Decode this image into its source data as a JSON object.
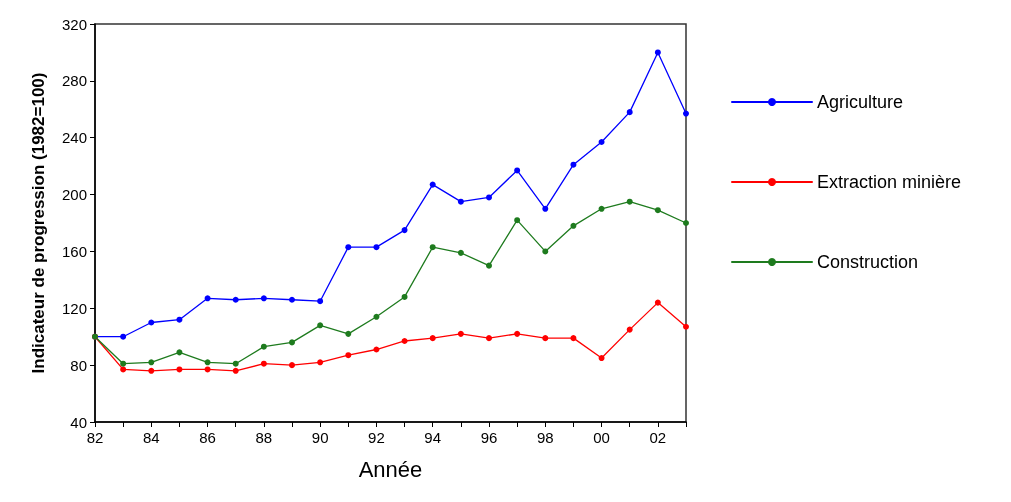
{
  "chart_data": {
    "type": "line",
    "xlabel": "Année",
    "ylabel": "Indicateur de progression (1982=100)",
    "x": [
      1982,
      1983,
      1984,
      1985,
      1986,
      1987,
      1988,
      1989,
      1990,
      1991,
      1992,
      1993,
      1994,
      1995,
      1996,
      1997,
      1998,
      1999,
      2000,
      2001,
      2002,
      2003
    ],
    "series": [
      {
        "name": "Agriculture",
        "color": "#0000ff",
        "values": [
          100,
          100,
          110,
          112,
          127,
          126,
          127,
          126,
          125,
          163,
          163,
          175,
          207,
          195,
          198,
          217,
          190,
          221,
          237,
          258,
          300,
          257
        ]
      },
      {
        "name": "Extraction minière",
        "color": "#ff0000",
        "values": [
          100,
          77,
          76,
          77,
          77,
          76,
          81,
          80,
          82,
          87,
          91,
          97,
          99,
          102,
          99,
          102,
          99,
          99,
          85,
          105,
          124,
          107
        ]
      },
      {
        "name": "Construction",
        "color": "#1e7b1e",
        "values": [
          100,
          81,
          82,
          89,
          82,
          81,
          93,
          96,
          108,
          102,
          114,
          128,
          163,
          159,
          150,
          182,
          160,
          178,
          190,
          195,
          189,
          180
        ]
      }
    ],
    "xlim": [
      1982,
      2003
    ],
    "xticks": [
      {
        "value": 1982,
        "label": "82"
      },
      {
        "value": 1983,
        "label": null
      },
      {
        "value": 1984,
        "label": "84"
      },
      {
        "value": 1985,
        "label": null
      },
      {
        "value": 1986,
        "label": "86"
      },
      {
        "value": 1987,
        "label": null
      },
      {
        "value": 1988,
        "label": "88"
      },
      {
        "value": 1989,
        "label": null
      },
      {
        "value": 1990,
        "label": "90"
      },
      {
        "value": 1991,
        "label": null
      },
      {
        "value": 1992,
        "label": "92"
      },
      {
        "value": 1993,
        "label": null
      },
      {
        "value": 1994,
        "label": "94"
      },
      {
        "value": 1995,
        "label": null
      },
      {
        "value": 1996,
        "label": "96"
      },
      {
        "value": 1997,
        "label": null
      },
      {
        "value": 1998,
        "label": "98"
      },
      {
        "value": 1999,
        "label": null
      },
      {
        "value": 2000,
        "label": "00"
      },
      {
        "value": 2001,
        "label": null
      },
      {
        "value": 2002,
        "label": "02"
      },
      {
        "value": 2003,
        "label": null
      }
    ],
    "ylim": [
      40,
      320
    ],
    "yticks": [
      40,
      80,
      120,
      160,
      200,
      240,
      280,
      320
    ],
    "legend": "right",
    "marker": "circle",
    "line_style": "solid",
    "grid": false
  }
}
